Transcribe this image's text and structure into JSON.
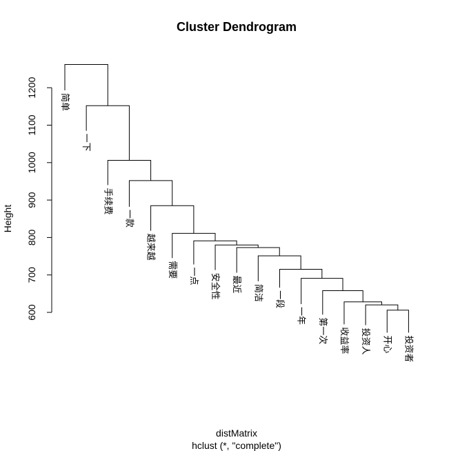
{
  "chart_data": {
    "type": "dendrogram",
    "title": "Cluster Dendrogram",
    "ylabel": "Height",
    "xlabel": "distMatrix",
    "sub": "hclust (*, \"complete\")",
    "ylim": [
      600,
      1260
    ],
    "y_ticks": [
      600,
      700,
      800,
      900,
      1000,
      1100,
      1200
    ],
    "leaves": [
      "简单",
      "一下",
      "手续费",
      "一款",
      "越来越",
      "需要",
      "一点",
      "安全性",
      "最近",
      "简洁",
      "一段",
      "一年",
      "第一次",
      "收益率",
      "投资人",
      "开心",
      "投资者"
    ],
    "leaf_heights": [
      1193,
      1085,
      940,
      882,
      818,
      745,
      728,
      713,
      706,
      683,
      666,
      622,
      594,
      568,
      566,
      546,
      546
    ],
    "merges": [
      {
        "left": "投资者",
        "right": "开心",
        "height": 606
      },
      {
        "left": "投资人",
        "right": "m1",
        "height": 620
      },
      {
        "left": "收益率",
        "right": "m2",
        "height": 628
      },
      {
        "left": "第一次",
        "right": "m3",
        "height": 658
      },
      {
        "left": "一年",
        "right": "m4",
        "height": 691
      },
      {
        "left": "一段",
        "right": "m5",
        "height": 715
      },
      {
        "left": "简洁",
        "right": "m6",
        "height": 751
      },
      {
        "left": "最近",
        "right": "m7",
        "height": 773
      },
      {
        "left": "安全性",
        "right": "m8",
        "height": 780
      },
      {
        "left": "一点",
        "right": "m9",
        "height": 791
      },
      {
        "left": "需要",
        "right": "m10",
        "height": 811
      },
      {
        "left": "越来越",
        "right": "m11",
        "height": 885
      },
      {
        "left": "一款",
        "right": "m12",
        "height": 952
      },
      {
        "left": "手续费",
        "right": "m13",
        "height": 1006
      },
      {
        "left": "一下",
        "right": "m14",
        "height": 1152
      },
      {
        "left": "简单",
        "right": "m15",
        "height": 1262
      }
    ]
  }
}
